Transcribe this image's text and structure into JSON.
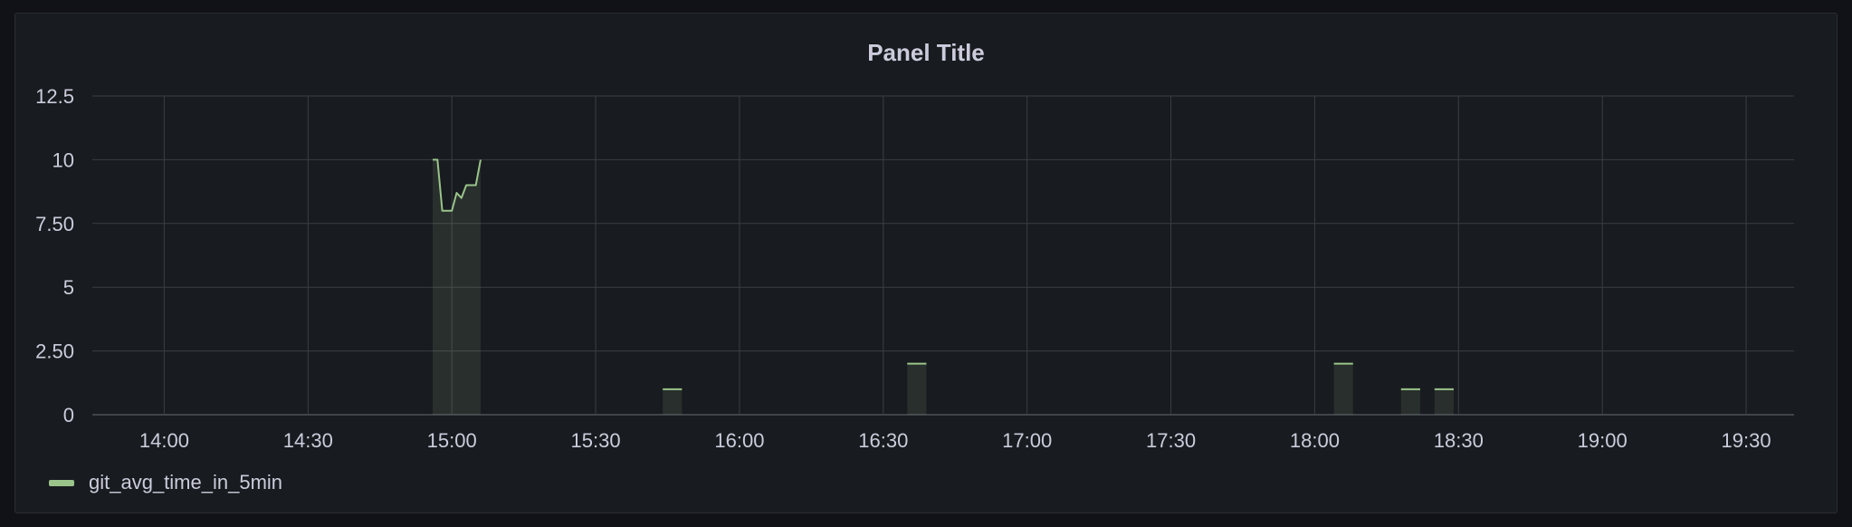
{
  "panel": {
    "title": "Panel Title"
  },
  "chart_data": {
    "type": "line",
    "title": "Panel Title",
    "x_unit": "time (HH:MM)",
    "xlim": [
      "13:45",
      "19:40"
    ],
    "ylim": [
      0,
      12.5
    ],
    "y_ticks": [
      "0",
      "2.50",
      "5",
      "7.50",
      "10",
      "12.5"
    ],
    "x_ticks": [
      "14:00",
      "14:30",
      "15:00",
      "15:30",
      "16:00",
      "16:30",
      "17:00",
      "17:30",
      "18:00",
      "18:30",
      "19:00",
      "19:30"
    ],
    "grid": true,
    "legend_position": "bottom-left",
    "series_color": "#9ac48a",
    "series": [
      {
        "name": "git_avg_time_in_5min",
        "segments": [
          {
            "points": [
              [
                "14:56",
                10
              ],
              [
                "14:57",
                10
              ],
              [
                "14:58",
                8
              ],
              [
                "15:00",
                8
              ],
              [
                "15:01",
                8.7
              ],
              [
                "15:02",
                8.5
              ],
              [
                "15:03",
                9
              ],
              [
                "15:05",
                9
              ],
              [
                "15:06",
                10
              ]
            ]
          },
          {
            "points": [
              [
                "15:44",
                1
              ],
              [
                "15:48",
                1
              ]
            ]
          },
          {
            "points": [
              [
                "16:35",
                2
              ],
              [
                "16:39",
                2
              ]
            ]
          },
          {
            "points": [
              [
                "18:04",
                2
              ],
              [
                "18:08",
                2
              ]
            ]
          },
          {
            "points": [
              [
                "18:18",
                1
              ],
              [
                "18:22",
                1
              ]
            ]
          },
          {
            "points": [
              [
                "18:25",
                1
              ],
              [
                "18:29",
                1
              ]
            ]
          }
        ]
      }
    ]
  }
}
